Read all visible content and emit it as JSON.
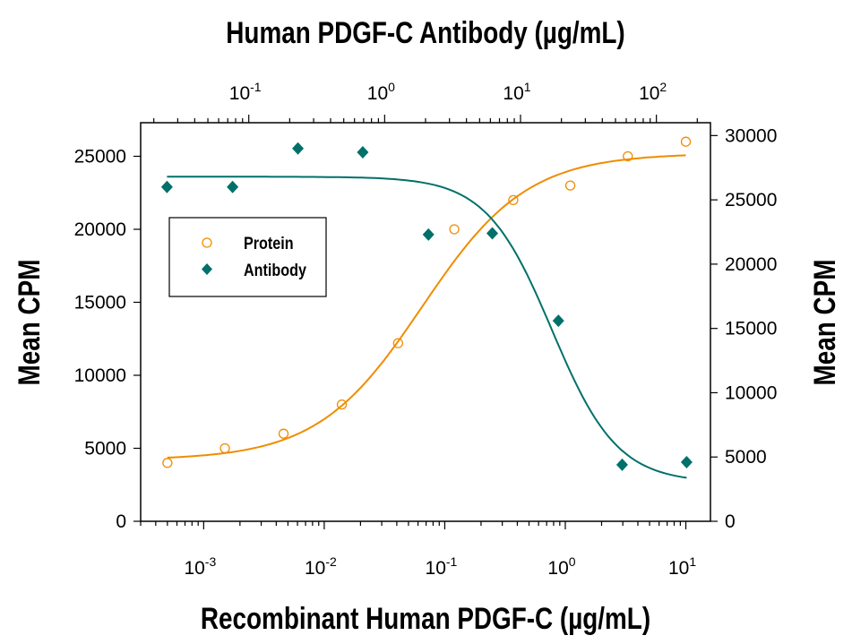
{
  "chart_data": {
    "type": "scatter",
    "title": "",
    "xlabel": "Recombinant Human PDGF-C (µg/mL)",
    "x2label": "Human PDGF-C Antibody (µg/mL)",
    "ylabel": "Mean CPM",
    "y2label": "Mean CPM",
    "xscale": "log",
    "x2scale": "log",
    "xlim": [
      0.0003,
      16
    ],
    "x2lim": [
      0.016,
      250
    ],
    "ylim": [
      0,
      27300
    ],
    "y2lim": [
      0,
      31000
    ],
    "xticks": [
      {
        "base": "10",
        "exp": "-3"
      },
      {
        "base": "10",
        "exp": "-2"
      },
      {
        "base": "10",
        "exp": "-1"
      },
      {
        "base": "10",
        "exp": "0"
      },
      {
        "base": "10",
        "exp": "1"
      }
    ],
    "x2ticks": [
      {
        "base": "10",
        "exp": "-1"
      },
      {
        "base": "10",
        "exp": "0"
      },
      {
        "base": "10",
        "exp": "1"
      },
      {
        "base": "10",
        "exp": "2"
      }
    ],
    "yticks": [
      "0",
      "5000",
      "10000",
      "15000",
      "20000",
      "25000"
    ],
    "y2ticks": [
      "0",
      "5000",
      "10000",
      "15000",
      "20000",
      "25000",
      "30000"
    ],
    "grid": false,
    "legend_placement": "upper-left",
    "series": [
      {
        "name": "Protein",
        "axis": "bottom-left",
        "marker": "open-circle",
        "color": "#f08c00",
        "x": [
          0.0005,
          0.0015,
          0.0046,
          0.014,
          0.041,
          0.12,
          0.37,
          1.1,
          3.3,
          10
        ],
        "y": [
          4000,
          5000,
          6000,
          8000,
          12200,
          20000,
          22000,
          23000,
          25000,
          26000
        ],
        "fit": {
          "model": "4PL",
          "bottom": 4200,
          "top": 25200,
          "ec50": 0.065,
          "hill": 1.0
        }
      },
      {
        "name": "Antibody",
        "axis": "top-right",
        "marker": "filled-diamond",
        "color": "#00706a",
        "x": [
          0.025,
          0.076,
          0.23,
          0.69,
          2.1,
          6.2,
          19,
          56,
          167
        ],
        "y": [
          26000,
          26000,
          29000,
          28700,
          22300,
          22400,
          15600,
          4400,
          4600
        ],
        "fit": {
          "model": "4PL",
          "bottom": 3000,
          "top": 26800,
          "ec50": 17,
          "hill": 1.8
        }
      }
    ]
  }
}
